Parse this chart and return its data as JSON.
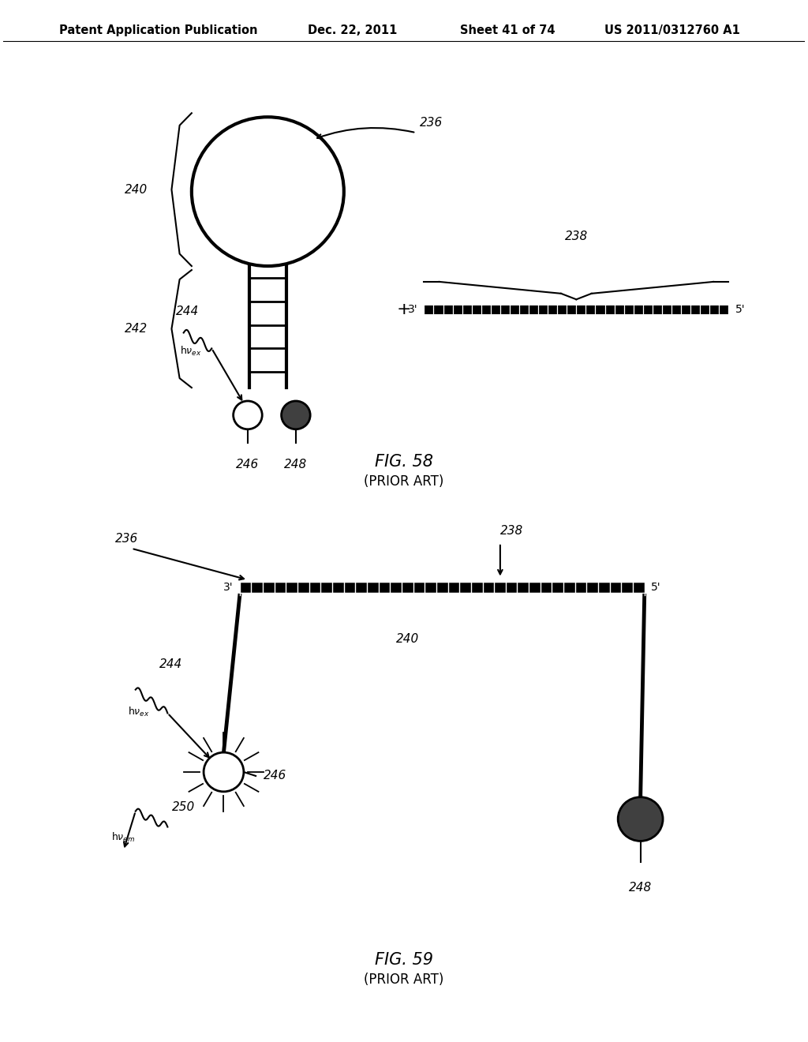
{
  "bg_color": "#ffffff",
  "header_text": "Patent Application Publication",
  "header_date": "Dec. 22, 2011",
  "header_sheet": "Sheet 41 of 74",
  "header_patent": "US 2011/0312760 A1",
  "fig58_title": "FIG. 58",
  "fig58_subtitle": "(PRIOR ART)",
  "fig59_title": "FIG. 59",
  "fig59_subtitle": "(PRIOR ART)",
  "label_236": "236",
  "label_238": "238",
  "label_240": "240",
  "label_242": "242",
  "label_244": "244",
  "label_246": "246",
  "label_248": "248",
  "label_250": "250",
  "text_color": "#000000",
  "line_color": "#000000"
}
